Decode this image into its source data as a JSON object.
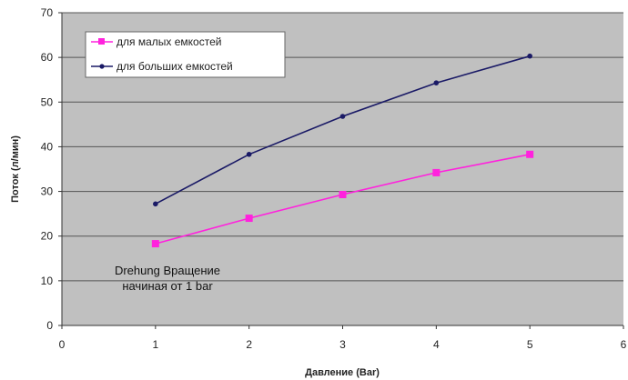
{
  "chart_data": {
    "type": "line",
    "xlabel": "Давление (Bar)",
    "ylabel": "Поток (л/мин)",
    "xlim": [
      0,
      6
    ],
    "ylim": [
      0,
      70
    ],
    "xticks": [
      "0",
      "1",
      "2",
      "3",
      "4",
      "5",
      "6"
    ],
    "yticks": [
      "0",
      "10",
      "20",
      "30",
      "40",
      "50",
      "60",
      "70"
    ],
    "grid": true,
    "legend_position": "top-left",
    "background_color": "#c0c0c0",
    "series": [
      {
        "name": "для малых емкостей",
        "color": "#ff22dd",
        "marker": "square",
        "x": [
          1,
          2,
          3,
          4,
          5
        ],
        "values": [
          18.3,
          24.0,
          29.3,
          34.2,
          38.3
        ]
      },
      {
        "name": "для больших емкостей",
        "color": "#1a1a66",
        "marker": "dot",
        "x": [
          1,
          2,
          3,
          4,
          5
        ],
        "values": [
          27.2,
          38.3,
          46.8,
          54.3,
          60.3
        ]
      }
    ],
    "annotation": {
      "line1": "Drehung Вращение",
      "line2": "начиная от 1 bar"
    }
  }
}
